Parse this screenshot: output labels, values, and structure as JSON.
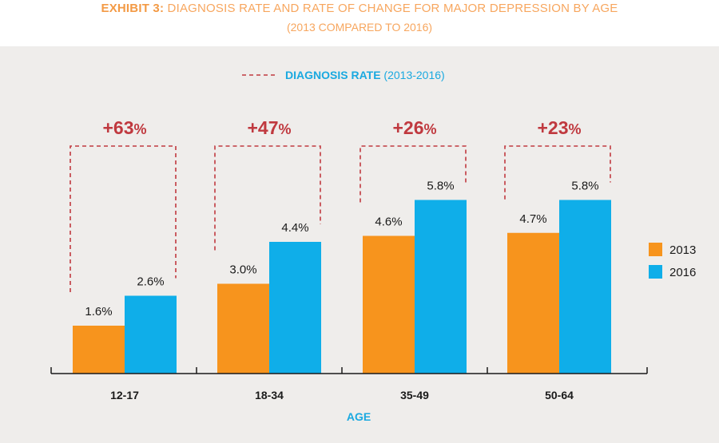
{
  "header": {
    "exhibit_label": "EXHIBIT 3:",
    "title": "DIAGNOSIS RATE AND RATE OF CHANGE FOR MAJOR DEPRESSION BY AGE",
    "subtitle": "(2013 COMPARED TO 2016)"
  },
  "colors": {
    "series_2013": "#f7941d",
    "series_2016": "#0faee9",
    "bracket": "#c0393f",
    "panel_bg": "#efedeb",
    "title": "#f7a65e",
    "accent_blue": "#1aa9e0"
  },
  "chart_data": {
    "type": "bar",
    "title": "DIAGNOSIS RATE AND RATE OF CHANGE FOR MAJOR DEPRESSION BY AGE",
    "subtitle": "(2013 COMPARED TO 2016)",
    "xlabel": "AGE",
    "ylabel": "",
    "ylim": [
      0,
      8.2
    ],
    "grid": false,
    "legend_position": "right",
    "categories": [
      "12-17",
      "18-34",
      "35-49",
      "50-64"
    ],
    "series": [
      {
        "name": "2013",
        "values": [
          1.6,
          3.0,
          4.6,
          4.7
        ],
        "labels": [
          "1.6%",
          "3.0%",
          "4.6%",
          "4.7%"
        ]
      },
      {
        "name": "2016",
        "values": [
          2.6,
          4.4,
          5.8,
          5.8
        ],
        "labels": [
          "2.6%",
          "4.4%",
          "5.8%",
          "5.8%"
        ]
      }
    ],
    "rate_of_change": {
      "legend_label": "DIAGNOSIS RATE",
      "legend_years": "(2013-2016)",
      "values": [
        {
          "number": "+63",
          "unit": "%"
        },
        {
          "number": "+47",
          "unit": "%"
        },
        {
          "number": "+26",
          "unit": "%"
        },
        {
          "number": "+23",
          "unit": "%"
        }
      ]
    }
  }
}
